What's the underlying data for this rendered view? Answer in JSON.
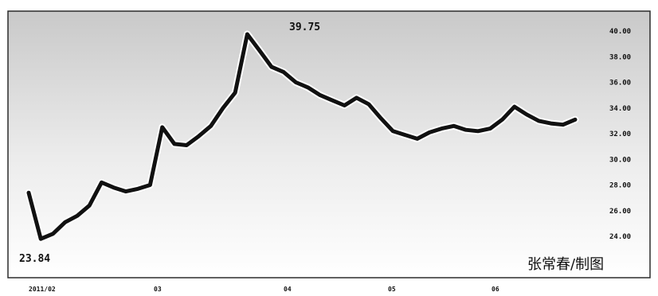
{
  "chart_data": {
    "type": "line",
    "title": "",
    "xlabel": "",
    "ylabel": "",
    "ylim": [
      22.5,
      41.0
    ],
    "yticks": [
      24,
      26,
      28,
      30,
      32,
      34,
      36,
      38,
      40
    ],
    "ytick_labels": [
      "24.00",
      "26.00",
      "28.00",
      "30.00",
      "32.00",
      "34.00",
      "36.00",
      "38.00",
      "40.00"
    ],
    "xtick_labels": [
      "2011/02",
      "03",
      "04",
      "05",
      "06"
    ],
    "grid": false,
    "series": [
      {
        "values": [
          27.4,
          23.8,
          24.2,
          25.1,
          25.6,
          26.4,
          28.2,
          27.8,
          27.5,
          27.7,
          28.0,
          32.5,
          31.2,
          31.1,
          31.8,
          32.6,
          34.0,
          35.2,
          39.75,
          38.5,
          37.2,
          36.8,
          36.0,
          35.6,
          35.0,
          34.6,
          34.2,
          34.8,
          34.3,
          33.2,
          32.2,
          31.9,
          31.6,
          32.1,
          32.4,
          32.6,
          32.3,
          32.2,
          32.4,
          33.1,
          34.1,
          33.5,
          33.0,
          32.8,
          32.7,
          33.1
        ]
      }
    ],
    "annotations": {
      "max_label": "39.75",
      "min_label": "23.84"
    },
    "colors": {
      "line": "#111111",
      "halo": "#ffffff",
      "frame": "#2b2b2b"
    }
  },
  "credit": "张常春/制图"
}
